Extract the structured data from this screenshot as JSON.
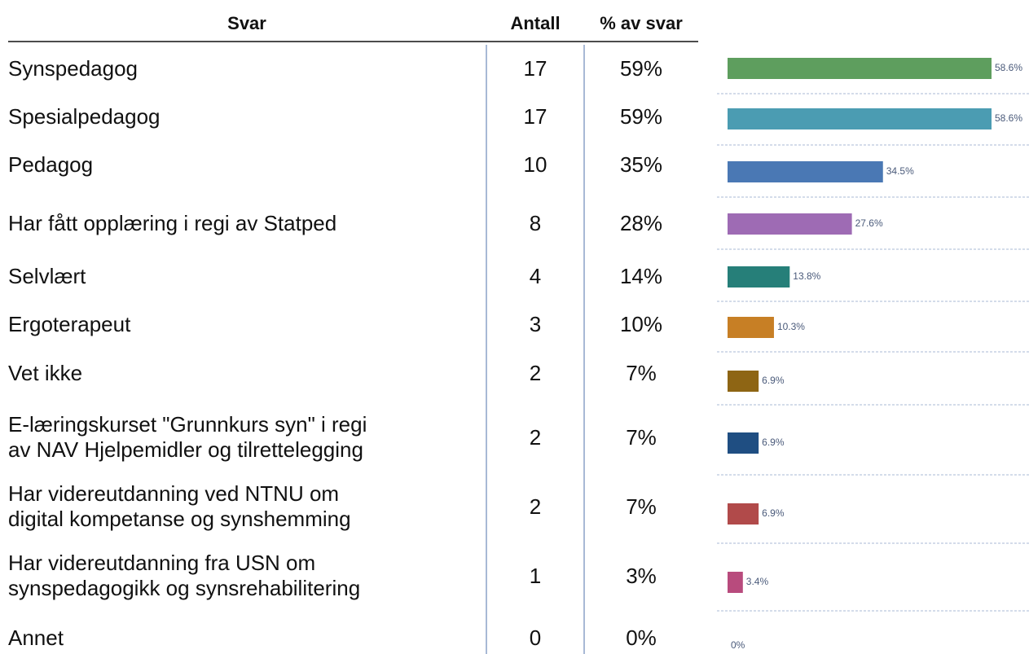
{
  "table": {
    "header": [
      "Svar",
      "Antall",
      "% av svar"
    ],
    "rows": [
      {
        "label": [
          "Synspedagog"
        ],
        "count": 17,
        "percent": "59%",
        "bar": {
          "value": 58.6,
          "label": "58.6%",
          "color": "#5e9e5e"
        }
      },
      {
        "label": [
          "Spesialpedagog"
        ],
        "count": 17,
        "percent": "59%",
        "bar": {
          "value": 58.6,
          "label": "58.6%",
          "color": "#4b9cb2"
        }
      },
      {
        "label": [
          "Pedagog"
        ],
        "count": 10,
        "percent": "35%",
        "bar": {
          "value": 34.5,
          "label": "34.5%",
          "color": "#4a78b4"
        }
      },
      {
        "label": [
          "Har fått opplæring i regi av Statped"
        ],
        "count": 8,
        "percent": "28%",
        "bar": {
          "value": 27.6,
          "label": "27.6%",
          "color": "#9e6bb4"
        }
      },
      {
        "label": [
          "Selvlært"
        ],
        "count": 4,
        "percent": "14%",
        "bar": {
          "value": 13.8,
          "label": "13.8%",
          "color": "#267f79"
        }
      },
      {
        "label": [
          "Ergoterapeut"
        ],
        "count": 3,
        "percent": "10%",
        "bar": {
          "value": 10.3,
          "label": "10.3%",
          "color": "#c77f25"
        }
      },
      {
        "label": [
          "Vet ikke"
        ],
        "count": 2,
        "percent": "7%",
        "bar": {
          "value": 6.9,
          "label": "6.9%",
          "color": "#8e6514"
        }
      },
      {
        "label": [
          "E-læringskurset \"Grunnkurs syn\" i regi",
          "av NAV Hjelpemidler og tilrettelegging"
        ],
        "count": 2,
        "percent": "7%",
        "bar": {
          "value": 6.9,
          "label": "6.9%",
          "color": "#1f4e82"
        }
      },
      {
        "label": [
          "Har videreutdanning ved NTNU om",
          "digital kompetanse og synshemming"
        ],
        "count": 2,
        "percent": "7%",
        "bar": {
          "value": 6.9,
          "label": "6.9%",
          "color": "#b14a4a"
        }
      },
      {
        "label": [
          "Har videreutdanning fra USN om",
          "synspedagogikk og synsrehabilitering"
        ],
        "count": 1,
        "percent": "3%",
        "bar": {
          "value": 3.4,
          "label": "3.4%",
          "color": "#b84b7d"
        }
      },
      {
        "label": [
          "Annet"
        ],
        "count": 0,
        "percent": "0%",
        "bar": {
          "value": 0,
          "label": "0%",
          "color": "#888888"
        }
      }
    ]
  }
}
